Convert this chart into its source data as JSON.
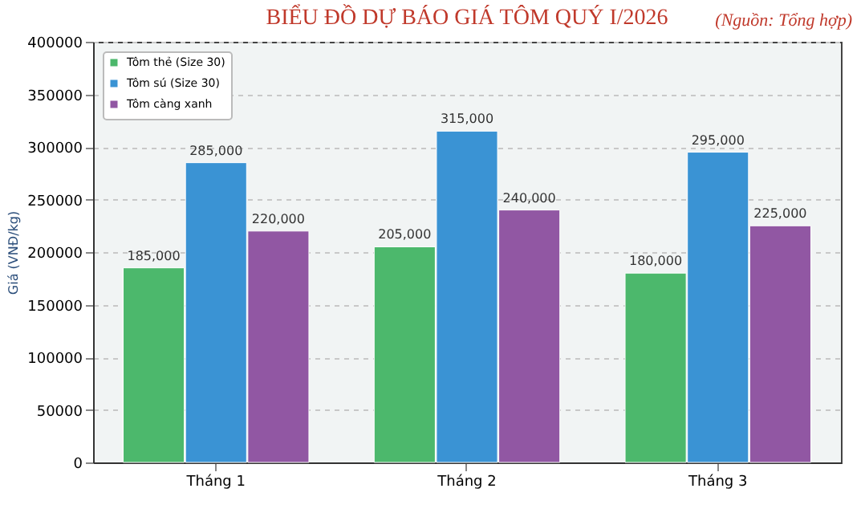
{
  "chart_data": {
    "type": "bar",
    "title": "BIỂU ĐỒ DỰ BÁO GIÁ TÔM QUÝ I/2026",
    "ylabel": "Giá (VNĐ/kg)",
    "annotations": [
      "(Nguồn: Tổng hợp)"
    ],
    "categories": [
      "Tháng 1",
      "Tháng 2",
      "Tháng 3"
    ],
    "series": [
      {
        "name": "Tôm thẻ (Size 30)",
        "color": "#4cb86c",
        "values": [
          185000,
          205000,
          180000
        ],
        "value_labels": [
          "185,000",
          "205,000",
          "180,000"
        ]
      },
      {
        "name": "Tôm sú (Size 30)",
        "color": "#3a93d4",
        "values": [
          285000,
          315000,
          295000
        ],
        "value_labels": [
          "285,000",
          "315,000",
          "295,000"
        ]
      },
      {
        "name": "Tôm càng xanh",
        "color": "#9157a3",
        "values": [
          220000,
          240000,
          225000
        ],
        "value_labels": [
          "220,000",
          "240,000",
          "225,000"
        ]
      }
    ],
    "ylim": [
      0,
      400000
    ],
    "yticks": [
      0,
      50000,
      100000,
      150000,
      200000,
      250000,
      300000,
      350000,
      400000
    ],
    "grid": "y",
    "legend": "top left"
  }
}
